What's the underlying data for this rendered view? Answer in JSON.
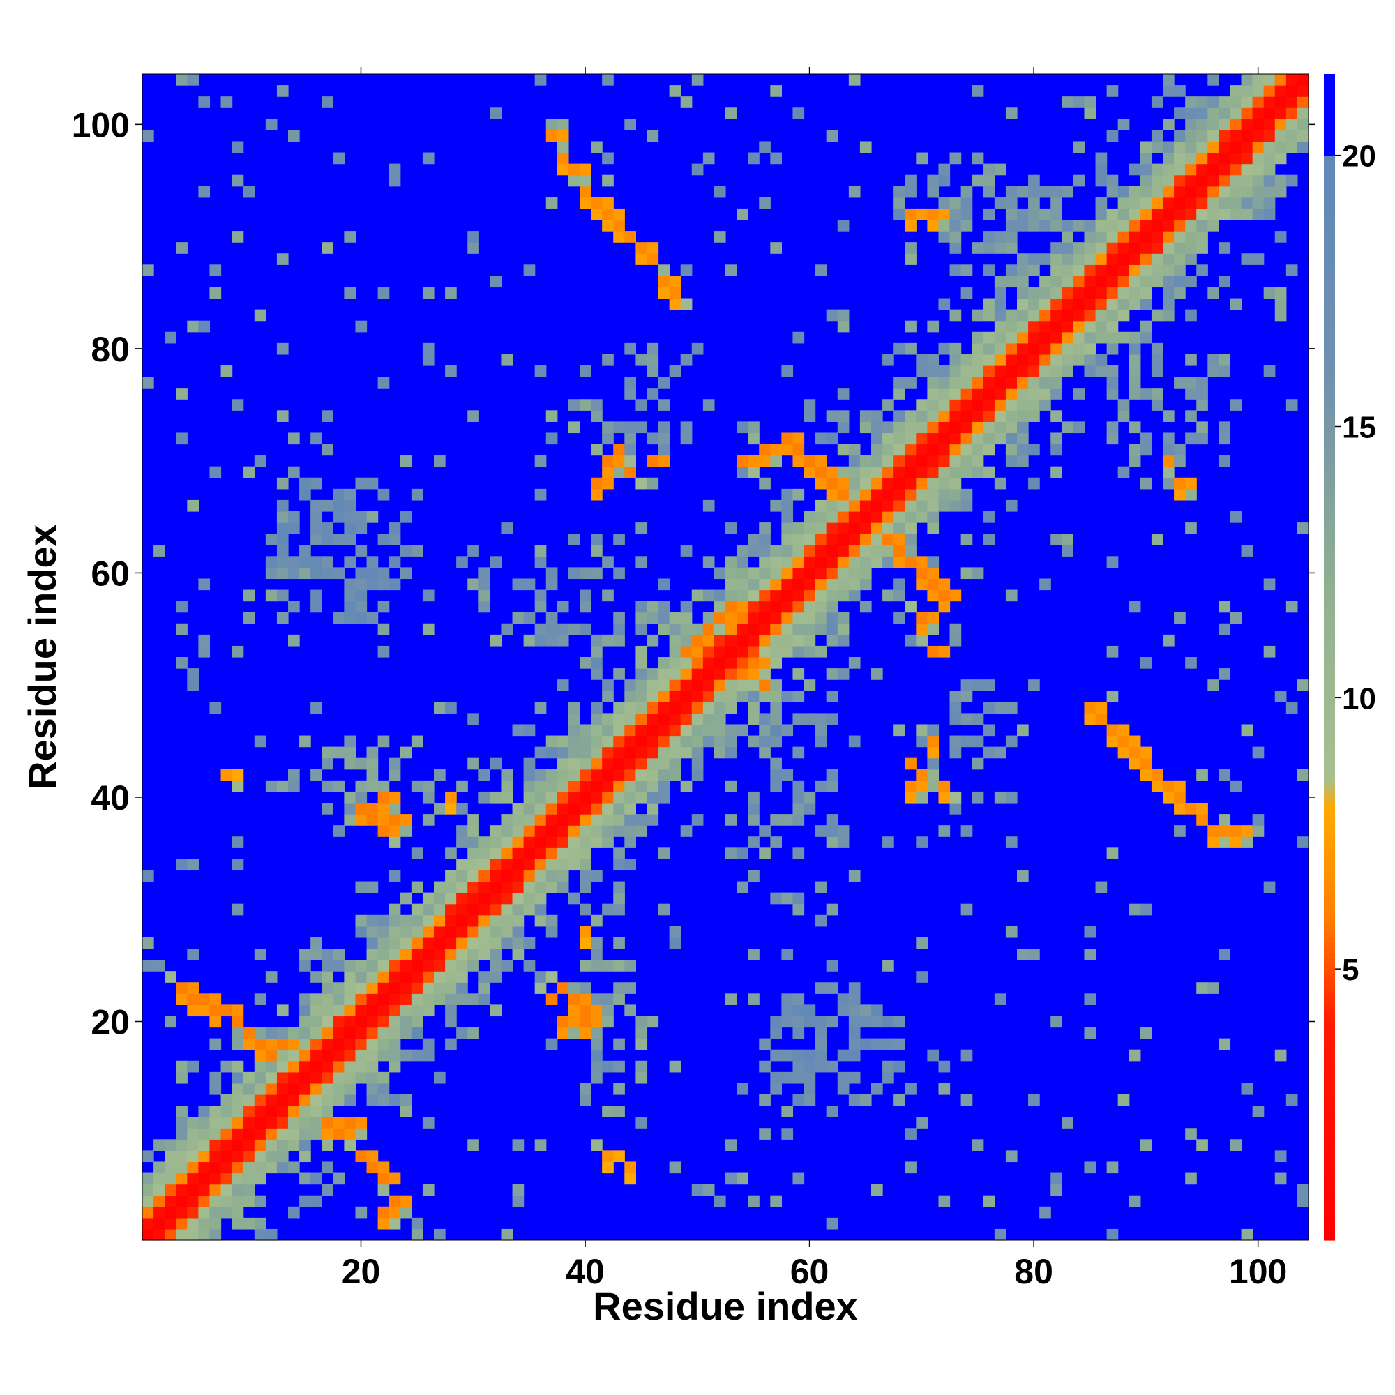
{
  "chart_data": {
    "type": "heatmap",
    "title": "",
    "xlabel": "Residue index",
    "ylabel": "Residue index",
    "n_residues": 104,
    "xlim": [
      0.5,
      104.5
    ],
    "ylim": [
      0.5,
      104.5
    ],
    "x_ticks": [
      20,
      40,
      60,
      80,
      100
    ],
    "y_ticks": [
      20,
      40,
      60,
      80,
      100
    ],
    "colorbar": {
      "range": [
        0,
        21.5
      ],
      "ticks": [
        5,
        10,
        15,
        20
      ],
      "stops": [
        {
          "value": 0,
          "color": "#ff0000"
        },
        {
          "value": 4,
          "color": "#ff1a00"
        },
        {
          "value": 6,
          "color": "#ff8000"
        },
        {
          "value": 8,
          "color": "#ffaa00"
        },
        {
          "value": 8.5,
          "color": "#a8c090"
        },
        {
          "value": 12,
          "color": "#90b090"
        },
        {
          "value": 16,
          "color": "#7090b0"
        },
        {
          "value": 20,
          "color": "#5f88b8"
        },
        {
          "value": 20.01,
          "color": "#0000ff"
        },
        {
          "value": 21.5,
          "color": "#0000ff"
        }
      ]
    },
    "background_value": 21,
    "contact_regions": [
      {
        "name": "hairpin-A",
        "points": [
          [
            37,
            99
          ],
          [
            38,
            97
          ],
          [
            39,
            96
          ],
          [
            40,
            94
          ],
          [
            41,
            93
          ],
          [
            42,
            92
          ],
          [
            43,
            91
          ],
          [
            44,
            90
          ],
          [
            45,
            89
          ],
          [
            46,
            88
          ],
          [
            47,
            86
          ],
          [
            48,
            85
          ]
        ],
        "value": 6.5
      },
      {
        "name": "hairpin-B",
        "points": [
          [
            85,
            48
          ],
          [
            86,
            47
          ],
          [
            87,
            46
          ],
          [
            88,
            45
          ],
          [
            89,
            44
          ],
          [
            90,
            43
          ],
          [
            91,
            42
          ],
          [
            92,
            41
          ],
          [
            93,
            40
          ],
          [
            94,
            39
          ],
          [
            95,
            38
          ],
          [
            96,
            37
          ],
          [
            97,
            37
          ],
          [
            98,
            37
          ]
        ],
        "value": 6.5
      },
      {
        "name": "cluster-70",
        "points": [
          [
            54,
            70
          ],
          [
            56,
            71
          ],
          [
            58,
            72
          ],
          [
            59,
            71
          ],
          [
            60,
            70
          ],
          [
            61,
            69
          ],
          [
            62,
            68
          ],
          [
            63,
            67
          ],
          [
            65,
            64
          ]
        ],
        "value": 6
      },
      {
        "name": "cluster-62",
        "points": [
          [
            67,
            63
          ],
          [
            68,
            62
          ],
          [
            69,
            61
          ],
          [
            70,
            60
          ],
          [
            71,
            59
          ],
          [
            72,
            58
          ],
          [
            70,
            56
          ],
          [
            71,
            53
          ]
        ],
        "value": 6
      },
      {
        "name": "cluster-52",
        "points": [
          [
            49,
            53
          ],
          [
            50,
            54
          ],
          [
            51,
            55
          ],
          [
            52,
            56
          ],
          [
            53,
            57
          ],
          [
            54,
            51
          ],
          [
            55,
            52
          ],
          [
            56,
            50
          ]
        ],
        "value": 6
      },
      {
        "name": "cluster-20",
        "points": [
          [
            4,
            23
          ],
          [
            5,
            22
          ],
          [
            6,
            22
          ],
          [
            7,
            21
          ],
          [
            8,
            21
          ],
          [
            9,
            20
          ],
          [
            10,
            19
          ],
          [
            11,
            18
          ],
          [
            12,
            17
          ],
          [
            13,
            18
          ]
        ],
        "value": 6
      },
      {
        "name": "cluster-10",
        "points": [
          [
            17,
            11
          ],
          [
            18,
            10
          ],
          [
            19,
            11
          ],
          [
            20,
            8
          ],
          [
            21,
            7
          ],
          [
            22,
            6
          ],
          [
            23,
            4
          ],
          [
            22,
            3
          ]
        ],
        "value": 6
      },
      {
        "name": "cluster-22-39",
        "points": [
          [
            37,
            22
          ],
          [
            38,
            23
          ],
          [
            39,
            22
          ],
          [
            40,
            21
          ],
          [
            40,
            20
          ],
          [
            38,
            20
          ]
        ],
        "value": 6
      },
      {
        "name": "cluster-39-20",
        "points": [
          [
            20,
            39
          ],
          [
            21,
            38
          ],
          [
            22,
            37
          ],
          [
            23,
            38
          ],
          [
            22,
            40
          ],
          [
            21,
            39
          ]
        ],
        "value": 6
      },
      {
        "name": "cluster-66-42",
        "points": [
          [
            42,
            70
          ],
          [
            43,
            71
          ],
          [
            44,
            69
          ],
          [
            46,
            70
          ],
          [
            41,
            68
          ]
        ],
        "value": 6
      },
      {
        "name": "cluster-69-42",
        "points": [
          [
            69,
            43
          ],
          [
            70,
            42
          ],
          [
            71,
            45
          ],
          [
            69,
            41
          ],
          [
            72,
            41
          ]
        ],
        "value": 6.5
      },
      {
        "name": "cluster-92-70",
        "points": [
          [
            92,
            70
          ],
          [
            93,
            68
          ],
          [
            69,
            92
          ],
          [
            71,
            92
          ]
        ],
        "value": 6.5
      },
      {
        "name": "single-contacts",
        "points": [
          [
            8,
            42
          ],
          [
            28,
            40
          ],
          [
            40,
            28
          ],
          [
            42,
            8
          ],
          [
            44,
            7
          ]
        ],
        "value": 7
      }
    ],
    "diffuse_regions": [
      {
        "name": "patch-upper-left",
        "center": [
          18,
          62
        ],
        "radius": [
          7,
          7
        ],
        "value": 17.5,
        "density": 0.55
      },
      {
        "name": "patch-lower-right",
        "center": [
          62,
          18
        ],
        "radius": [
          7,
          6
        ],
        "value": 17.5,
        "density": 0.55
      },
      {
        "name": "patch-mid",
        "center": [
          45,
          75
        ],
        "radius": [
          6,
          6
        ],
        "value": 16,
        "density": 0.3
      },
      {
        "name": "patch-mid-sym",
        "center": [
          75,
          45
        ],
        "radius": [
          6,
          6
        ],
        "value": 16,
        "density": 0.3
      },
      {
        "name": "patch-top",
        "center": [
          75,
          92
        ],
        "radius": [
          8,
          6
        ],
        "value": 15,
        "density": 0.35
      },
      {
        "name": "patch-right",
        "center": [
          92,
          75
        ],
        "radius": [
          6,
          8
        ],
        "value": 15,
        "density": 0.35
      },
      {
        "name": "patch-left",
        "center": [
          20,
          42
        ],
        "radius": [
          9,
          4
        ],
        "value": 14,
        "density": 0.35
      },
      {
        "name": "patch-bottom",
        "center": [
          42,
          20
        ],
        "radius": [
          4,
          9
        ],
        "value": 14,
        "density": 0.35
      },
      {
        "name": "patch-57",
        "center": [
          40,
          58
        ],
        "radius": [
          10,
          6
        ],
        "value": 16,
        "density": 0.25
      },
      {
        "name": "patch-57-sym",
        "center": [
          58,
          40
        ],
        "radius": [
          6,
          10
        ],
        "value": 16,
        "density": 0.25
      }
    ]
  }
}
